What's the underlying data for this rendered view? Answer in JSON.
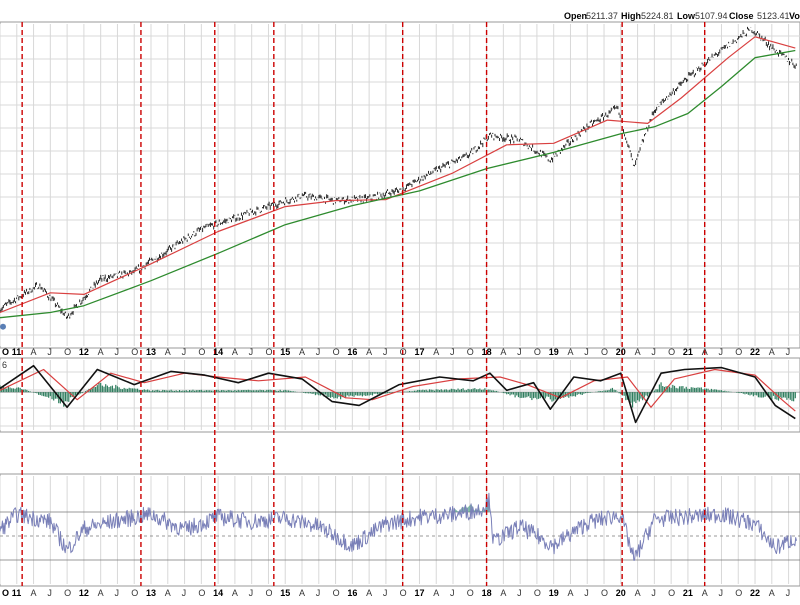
{
  "ohlc": {
    "open_label": "Open",
    "open_value": "5211.37",
    "high_label": "High",
    "high_value": "5224.81",
    "low_label": "Low",
    "low_value": "5107.94",
    "close_label": "Close",
    "close_value": "5123.41",
    "volume_label": "Vo"
  },
  "colors": {
    "price": "#111111",
    "ma_short": "#d94040",
    "ma_long": "#2e8b2e",
    "event_line": "#cc0000",
    "macd": "#111111",
    "macd_signal": "#d94040",
    "histogram": "#2e7d5e",
    "rsi": "#7a80b8",
    "rsi_fill": "#4f9e86",
    "grid": "#d8d8d8"
  },
  "chart_data": [
    {
      "type": "line",
      "panel": "price",
      "x_axis": "time",
      "x_range": [
        "2010-Q4",
        "2022-Q4"
      ],
      "grid": true,
      "series": [
        {
          "x": [
            2010.75,
            2011.33,
            2011.75,
            2012.25,
            2012.75,
            2013.25,
            2013.75,
            2014.25,
            2014.75,
            2015.25,
            2015.75,
            2016.25,
            2016.75,
            2017.25,
            2017.75,
            2018.05,
            2018.5,
            2018.95,
            2019.5,
            2019.95,
            2020.2,
            2020.5,
            2020.95,
            2021.5,
            2021.95,
            2022.3,
            2022.6
          ],
          "values": [
            1200,
            1350,
            1150,
            1390,
            1440,
            1600,
            1780,
            1880,
            1990,
            2100,
            2050,
            2070,
            2170,
            2380,
            2570,
            2830,
            2760,
            2500,
            2950,
            3230,
            2400,
            3200,
            3700,
            4300,
            4780,
            4300,
            4000
          ]
        },
        {
          "x": [
            2010.75,
            2011.5,
            2012.0,
            2013.0,
            2014.0,
            2015.0,
            2015.75,
            2016.5,
            2017.5,
            2018.3,
            2019.0,
            2019.8,
            2020.4,
            2020.9,
            2021.6,
            2022.0,
            2022.6
          ],
          "values": [
            1180,
            1300,
            1290,
            1500,
            1760,
            1990,
            2050,
            2060,
            2350,
            2700,
            2720,
            3050,
            3000,
            3400,
            4150,
            4600,
            4350
          ]
        },
        {
          "x": [
            2010.75,
            2011.5,
            2012.0,
            2013.0,
            2014.0,
            2015.0,
            2016.0,
            2017.0,
            2018.0,
            2019.0,
            2020.0,
            2020.5,
            2021.0,
            2021.5,
            2022.0,
            2022.6
          ],
          "values": [
            1150,
            1180,
            1220,
            1380,
            1580,
            1820,
            2000,
            2150,
            2400,
            2600,
            2850,
            2950,
            3150,
            3600,
            4150,
            4300
          ]
        }
      ]
    },
    {
      "type": "line",
      "panel": "macd",
      "x_axis": "time",
      "series": [
        {
          "x": [
            2010.75,
            2011.25,
            2011.75,
            2012.2,
            2012.75,
            2013.3,
            2013.8,
            2014.3,
            2014.75,
            2015.25,
            2015.7,
            2016.1,
            2016.7,
            2017.3,
            2017.8,
            2018.05,
            2018.3,
            2018.7,
            2018.95,
            2019.3,
            2019.7,
            2020.0,
            2020.22,
            2020.6,
            2020.95,
            2021.5,
            2022.0,
            2022.3,
            2022.6
          ],
          "values": [
            0.2,
            1.4,
            -0.8,
            1.2,
            0.4,
            1.1,
            0.9,
            0.5,
            1.0,
            0.7,
            -0.5,
            -0.7,
            0.4,
            0.8,
            0.6,
            1.0,
            0.1,
            0.5,
            -0.9,
            0.8,
            0.6,
            1.0,
            -1.6,
            1.0,
            1.2,
            1.3,
            0.8,
            -0.7,
            -1.4
          ]
        },
        {
          "x": [
            2010.75,
            2011.4,
            2011.9,
            2012.4,
            2012.9,
            2013.5,
            2014.0,
            2014.6,
            2015.3,
            2015.9,
            2016.3,
            2016.9,
            2017.6,
            2018.2,
            2018.6,
            2019.1,
            2019.6,
            2020.1,
            2020.45,
            2020.8,
            2021.4,
            2022.0,
            2022.4,
            2022.6
          ],
          "values": [
            0.1,
            1.2,
            -0.4,
            1.0,
            0.5,
            1.0,
            0.8,
            0.6,
            0.8,
            -0.3,
            -0.4,
            0.3,
            0.7,
            0.8,
            0.4,
            -0.3,
            0.6,
            0.8,
            -0.8,
            0.7,
            1.2,
            0.9,
            -0.4,
            -1.0
          ]
        }
      ],
      "histogram": {
        "x": [
          2011.0,
          2011.7,
          2012.2,
          2013.0,
          2014.0,
          2015.0,
          2015.8,
          2016.1,
          2017.0,
          2018.0,
          2018.5,
          2019.0,
          2019.9,
          2020.2,
          2020.6,
          2021.5,
          2022.2,
          2022.5
        ],
        "values": [
          0.3,
          -0.6,
          0.4,
          0.1,
          0.1,
          0.1,
          -0.3,
          -0.2,
          0.1,
          0.2,
          -0.3,
          -0.4,
          0.2,
          -0.8,
          0.4,
          0.1,
          -0.3,
          -0.4
        ]
      }
    },
    {
      "type": "line",
      "panel": "rsi",
      "x_axis": "time",
      "reference_levels": [
        70,
        50,
        30
      ],
      "series": [
        {
          "x": [
            2010.75,
            2011.0,
            2011.5,
            2011.75,
            2012.0,
            2012.5,
            2013.0,
            2013.5,
            2014.0,
            2014.5,
            2015.0,
            2015.5,
            2016.0,
            2016.5,
            2017.0,
            2017.5,
            2017.9,
            2018.05,
            2018.1,
            2018.5,
            2019.0,
            2019.5,
            2020.0,
            2020.2,
            2020.5,
            2021.0,
            2021.5,
            2022.0,
            2022.3,
            2022.6
          ],
          "values": [
            55,
            68,
            62,
            38,
            56,
            63,
            68,
            55,
            66,
            62,
            65,
            58,
            42,
            60,
            66,
            68,
            72,
            80,
            45,
            58,
            42,
            61,
            68,
            30,
            64,
            66,
            68,
            60,
            40,
            48
          ]
        }
      ]
    }
  ],
  "price_band_marker": {
    "x": 2010.75,
    "value": 1100
  },
  "event_lines": {
    "x": [
      2011.08,
      2012.85,
      2013.95,
      2014.83,
      2016.75,
      2018.0,
      2020.02,
      2021.25
    ]
  },
  "axis": {
    "year_labels": [
      {
        "label": "11",
        "x": 2011.0
      },
      {
        "label": "12",
        "x": 2012.0
      },
      {
        "label": "13",
        "x": 2013.0
      },
      {
        "label": "14",
        "x": 2014.0
      },
      {
        "label": "15",
        "x": 2015.0
      },
      {
        "label": "16",
        "x": 2016.0
      },
      {
        "label": "17",
        "x": 2017.0
      },
      {
        "label": "18",
        "x": 2018.0
      },
      {
        "label": "19",
        "x": 2019.0
      },
      {
        "label": "20",
        "x": 2020.0
      },
      {
        "label": "21",
        "x": 2021.0
      },
      {
        "label": "22",
        "x": 2022.0
      }
    ],
    "month_labels": [
      "A",
      "J",
      "O"
    ],
    "start_label": "O",
    "macd_top_label": "6"
  }
}
